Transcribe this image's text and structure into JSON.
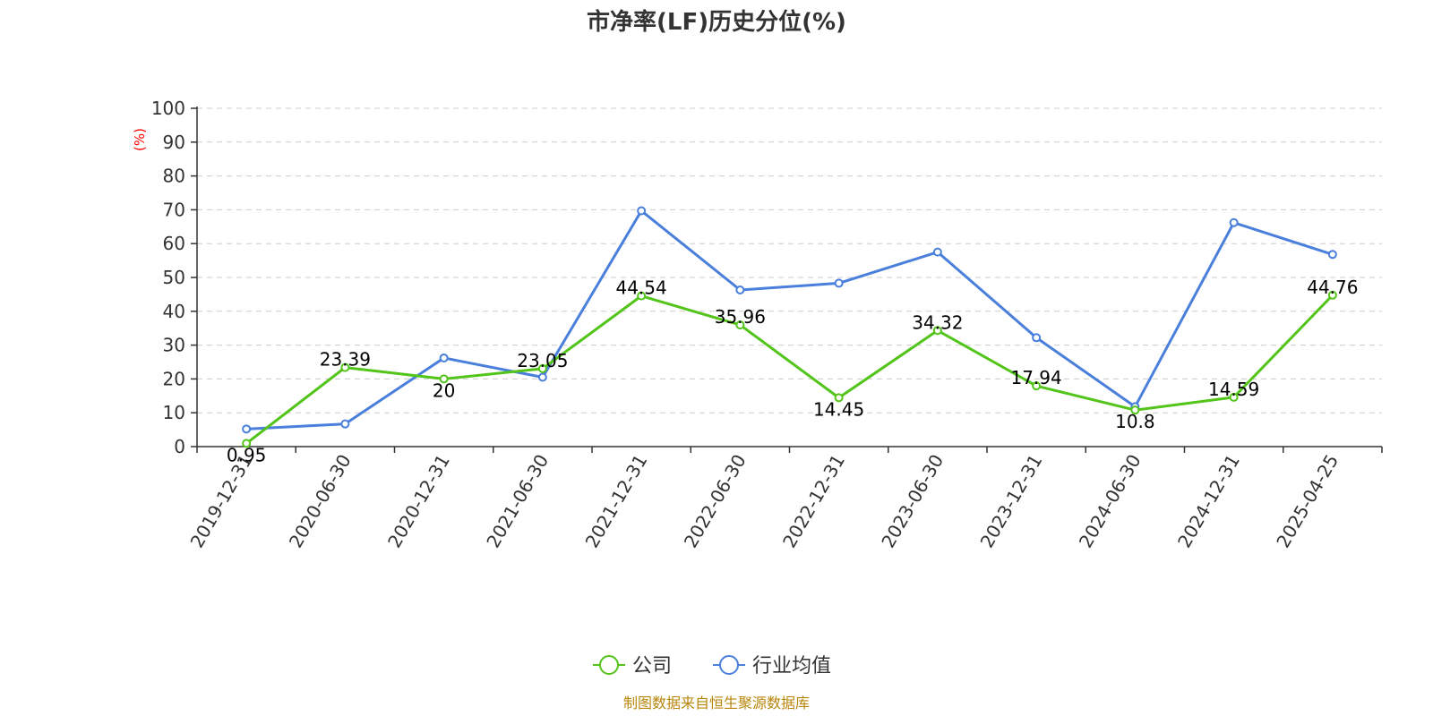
{
  "chart_data": {
    "type": "line",
    "title": "市净率(LF)历史分位(%)",
    "ylabel": "(%)",
    "xlabel": "",
    "ylim": [
      0,
      100
    ],
    "yticks": [
      0,
      10,
      20,
      30,
      40,
      50,
      60,
      70,
      80,
      90,
      100
    ],
    "grid": true,
    "legend_position": "bottom",
    "categories": [
      "2019-12-31",
      "2020-06-30",
      "2020-12-31",
      "2021-06-30",
      "2021-12-31",
      "2022-06-30",
      "2022-12-31",
      "2023-06-30",
      "2023-12-31",
      "2024-06-30",
      "2024-12-31",
      "2025-04-25"
    ],
    "series": [
      {
        "name": "公司",
        "color": "#52c41a",
        "values": [
          0.95,
          23.39,
          20,
          23.05,
          44.54,
          35.96,
          14.45,
          34.32,
          17.94,
          10.8,
          14.59,
          44.76
        ],
        "labels": [
          "0.95",
          "23.39",
          "20",
          "23.05",
          "44.54",
          "35.96",
          "14.45",
          "34.32",
          "17.94",
          "10.8",
          "14.59",
          "44.76"
        ]
      },
      {
        "name": "行业均值",
        "color": "#4a7fdc",
        "values": [
          5.2,
          6.7,
          26.2,
          20.5,
          69.7,
          46.3,
          48.3,
          57.5,
          32.2,
          11.8,
          66.2,
          56.8
        ]
      }
    ]
  },
  "source": "制图数据来自恒生聚源数据库"
}
